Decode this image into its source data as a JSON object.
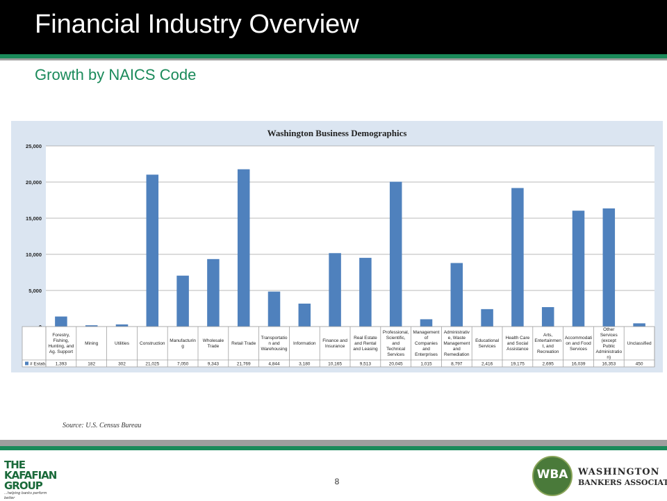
{
  "slide": {
    "title": "Financial Industry Overview",
    "subtitle": "Growth by NAICS Code",
    "source": "Source: U.S. Census Bureau",
    "page_number": "8"
  },
  "logos": {
    "left": {
      "lines": [
        "THE",
        "KAFAFIAN",
        "GROUP"
      ],
      "tagline": "...helping banks perform better"
    },
    "right": {
      "badge": "WBA",
      "line1": "WASHINGTON",
      "line2": "BANKERS ASSOCIATION"
    }
  },
  "colors": {
    "bar": "#4f81bd",
    "plot_bg": "#ffffff",
    "chart_bg": "#dbe5f1",
    "accent_green": "#1a8a5a",
    "header_bg": "#000000"
  },
  "chart_data": {
    "type": "bar",
    "title": "Washington Business Demographics",
    "categories": [
      [
        "Forestry,",
        "Fishing,",
        "Hunting, and",
        "Ag. Support"
      ],
      [
        "Mining"
      ],
      [
        "Utilities"
      ],
      [
        "Construction"
      ],
      [
        "Manufacturin",
        "g"
      ],
      [
        "Wholesale",
        "Trade"
      ],
      [
        "Retail Trade"
      ],
      [
        "Transportatio",
        "n and",
        "Warehousing"
      ],
      [
        "Information"
      ],
      [
        "Finance and",
        "Insurance"
      ],
      [
        "Real Estate",
        "and Rental",
        "and Leasing"
      ],
      [
        "Professional,",
        "Scientific,",
        "and",
        "Technical",
        "Services"
      ],
      [
        "Management",
        "of",
        "Companies",
        "and",
        "Enterprises"
      ],
      [
        "Administrativ",
        "e, Waste",
        "Management",
        "and",
        "Remediation"
      ],
      [
        "Educational",
        "Services"
      ],
      [
        "Health Care",
        "and Social",
        "Assistance"
      ],
      [
        "Arts,",
        "Entertainmen",
        "t, and",
        "Recreation"
      ],
      [
        "Accommodati",
        "on and Food",
        "Services"
      ],
      [
        "Other",
        "Services",
        "(except",
        "Public",
        "Administratio",
        "n)"
      ],
      [
        "Unclassified"
      ]
    ],
    "series": [
      {
        "name": "# Estab.",
        "values": [
          1393,
          182,
          302,
          21025,
          7050,
          9343,
          21769,
          4844,
          3180,
          10165,
          9513,
          20045,
          1015,
          8797,
          2416,
          19175,
          2695,
          16039,
          16353,
          450
        ],
        "value_labels": [
          "1,393",
          "182",
          "302",
          "21,025",
          "7,050",
          "9,343",
          "21,769",
          "4,844",
          "3,180",
          "10,165",
          "9,513",
          "20,045",
          "1,015",
          "8,797",
          "2,416",
          "19,175",
          "2,695",
          "16,039",
          "16,353",
          "450"
        ]
      }
    ],
    "ylim": [
      0,
      25000
    ],
    "yticks": [
      0,
      5000,
      10000,
      15000,
      20000,
      25000
    ],
    "ytick_labels": [
      "0",
      "5,000",
      "10,000",
      "15,000",
      "20,000",
      "25,000"
    ],
    "xlabel": "",
    "ylabel": "",
    "grid": true,
    "legend": "data-table"
  }
}
